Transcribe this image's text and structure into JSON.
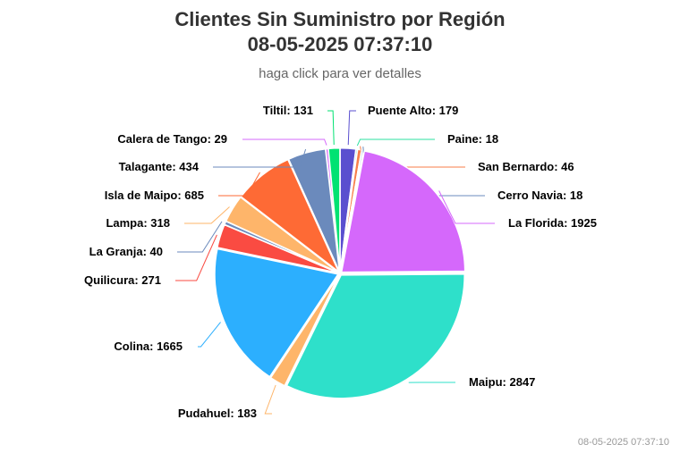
{
  "header": {
    "title_line1": "Clientes Sin Suministro por Región",
    "title_line2": "08-05-2025 07:37:10",
    "subtitle": "haga click para ver detalles"
  },
  "footer": {
    "credit": "08-05-2025 07:37:10"
  },
  "chart_data": {
    "type": "pie",
    "title": "Clientes Sin Suministro por Región 08-05-2025 07:37:10",
    "subtitle": "haga click para ver detalles",
    "slices": [
      {
        "name": "Puente Alto",
        "value": 179,
        "color": "#5a4fcf"
      },
      {
        "name": "Paine",
        "value": 18,
        "color": "#2ee0a0"
      },
      {
        "name": "San Bernardo",
        "value": 46,
        "color": "#f87e4a"
      },
      {
        "name": "Cerro Navia",
        "value": 18,
        "color": "#6b8bbd"
      },
      {
        "name": "La Florida",
        "value": 1925,
        "color": "#d568fb"
      },
      {
        "name": "Maipu",
        "value": 2847,
        "color": "#2ee0ca"
      },
      {
        "name": "Pudahuel",
        "value": 183,
        "color": "#feb56a"
      },
      {
        "name": "Colina",
        "value": 1665,
        "color": "#2caffe"
      },
      {
        "name": "Quilicura",
        "value": 271,
        "color": "#fa4b42"
      },
      {
        "name": "La Granja",
        "value": 40,
        "color": "#6b8abc"
      },
      {
        "name": "Lampa",
        "value": 318,
        "color": "#feb56a"
      },
      {
        "name": "Isla de Maipo",
        "value": 685,
        "color": "#fe6a35"
      },
      {
        "name": "Talagante",
        "value": 434,
        "color": "#6b8abc"
      },
      {
        "name": "Calera de Tango",
        "value": 29,
        "color": "#d568fb"
      },
      {
        "name": "Tiltil",
        "value": 131,
        "color": "#00e272"
      }
    ]
  }
}
